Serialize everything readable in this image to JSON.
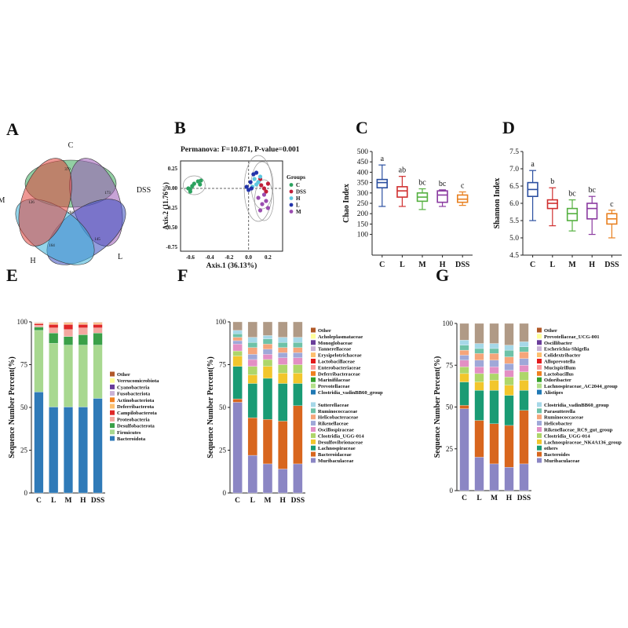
{
  "panels": {
    "A": {
      "label": "A"
    },
    "B": {
      "label": "B"
    },
    "C": {
      "label": "C"
    },
    "D": {
      "label": "D"
    },
    "E": {
      "label": "E"
    },
    "F": {
      "label": "F"
    },
    "G": {
      "label": "G"
    }
  },
  "chart_data": [
    {
      "id": "A",
      "type": "venn",
      "sets": [
        {
          "name": "C",
          "color": "#3aa85a"
        },
        {
          "name": "DSS",
          "color": "#9b59b6"
        },
        {
          "name": "L",
          "color": "#3b4cc0"
        },
        {
          "name": "H",
          "color": "#3ab0d8"
        },
        {
          "name": "M",
          "color": "#e0443c"
        }
      ],
      "region_counts": [
        {
          "region": "C only",
          "value": "379"
        },
        {
          "region": "DSS only",
          "value": "173"
        },
        {
          "region": "L only",
          "value": "145"
        },
        {
          "region": "H only",
          "value": "164"
        },
        {
          "region": "M only",
          "value": "126"
        },
        {
          "region": "all",
          "value": "284"
        }
      ]
    },
    {
      "id": "B",
      "type": "scatter",
      "title": "Permanova: F=10.871, P-value=0.001",
      "xlabel": "Axis.1 (36.13%)",
      "ylabel": "Axis.2 (11.76%)",
      "xlim": [
        -0.7,
        0.35
      ],
      "ylim": [
        -0.8,
        0.35
      ],
      "xticks": [
        "-0.6",
        "-0.4",
        "-0.2",
        "0.0",
        "0.2"
      ],
      "yticks": [
        "0.25",
        "0.00",
        "-0.25",
        "-0.50",
        "-0.75"
      ],
      "legend_title": "Groups",
      "series": [
        {
          "name": "C",
          "color": "#2ca25f",
          "x": [
            -0.62,
            -0.6,
            -0.58,
            -0.56,
            -0.52,
            -0.5,
            -0.49,
            -0.6
          ],
          "y": [
            0.0,
            -0.04,
            0.03,
            0.06,
            0.09,
            0.05,
            0.1,
            -0.01
          ]
        },
        {
          "name": "DSS",
          "color": "#c0203a",
          "x": [
            0.1,
            0.13,
            0.16,
            0.12,
            0.2,
            0.18
          ],
          "y": [
            0.08,
            0.04,
            0.0,
            0.12,
            0.06,
            -0.04
          ]
        },
        {
          "name": "H",
          "color": "#5ec8e0",
          "x": [
            0.06,
            0.08,
            0.1,
            0.04,
            0.12
          ],
          "y": [
            0.12,
            0.05,
            0.08,
            0.02,
            0.15
          ]
        },
        {
          "name": "L",
          "color": "#2233aa",
          "x": [
            0.0,
            0.02,
            -0.02,
            0.05,
            0.08,
            0.03
          ],
          "y": [
            -0.02,
            0.08,
            0.02,
            0.18,
            0.2,
            0.0
          ]
        },
        {
          "name": "M",
          "color": "#9a4db0",
          "x": [
            0.1,
            0.14,
            0.18,
            0.2,
            0.12,
            0.16
          ],
          "y": [
            -0.12,
            -0.2,
            -0.16,
            -0.25,
            -0.28,
            -0.08
          ]
        }
      ]
    },
    {
      "id": "C",
      "type": "boxplot",
      "ylabel": "Chao Index",
      "ylim": [
        0,
        500
      ],
      "yticks": [
        "500",
        "450",
        "400",
        "350",
        "300",
        "250",
        "200",
        "150",
        "100"
      ],
      "categories": [
        "C",
        "L",
        "M",
        "H",
        "DSS"
      ],
      "letters": [
        "a",
        "ab",
        "bc",
        "bc",
        "c"
      ],
      "colors": [
        "#2b4fa0",
        "#d03030",
        "#55b040",
        "#8a3aa0",
        "#e88020"
      ],
      "boxes": [
        {
          "min": 235,
          "q1": 325,
          "median": 350,
          "q3": 365,
          "max": 435
        },
        {
          "min": 235,
          "q1": 280,
          "median": 310,
          "q3": 330,
          "max": 380
        },
        {
          "min": 220,
          "q1": 260,
          "median": 280,
          "q3": 300,
          "max": 320
        },
        {
          "min": 235,
          "q1": 255,
          "median": 290,
          "q3": 310,
          "max": 315
        },
        {
          "min": 240,
          "q1": 255,
          "median": 270,
          "q3": 290,
          "max": 305
        }
      ]
    },
    {
      "id": "D",
      "type": "boxplot",
      "ylabel": "Shannon Index",
      "ylim": [
        4.5,
        7.5
      ],
      "yticks": [
        "7.5",
        "7.0",
        "6.5",
        "6.0",
        "5.5",
        "5.0",
        "4.5"
      ],
      "categories": [
        "C",
        "L",
        "M",
        "H",
        "DSS"
      ],
      "letters": [
        "a",
        "b",
        "bc",
        "bc",
        "c"
      ],
      "colors": [
        "#2b4fa0",
        "#d03030",
        "#55b040",
        "#8a3aa0",
        "#e88020"
      ],
      "boxes": [
        {
          "min": 5.5,
          "q1": 6.2,
          "median": 6.4,
          "q3": 6.6,
          "max": 6.95
        },
        {
          "min": 5.35,
          "q1": 5.85,
          "median": 6.0,
          "q3": 6.1,
          "max": 6.45
        },
        {
          "min": 5.2,
          "q1": 5.5,
          "median": 5.7,
          "q3": 5.85,
          "max": 6.1
        },
        {
          "min": 5.1,
          "q1": 5.55,
          "median": 5.85,
          "q3": 6.0,
          "max": 6.2
        },
        {
          "min": 5.0,
          "q1": 5.4,
          "median": 5.55,
          "q3": 5.7,
          "max": 5.8
        }
      ]
    },
    {
      "id": "E",
      "type": "stacked_bar",
      "ylabel": "Sequence Number Percent(%)",
      "ylim": [
        0,
        100
      ],
      "yticks": [
        "100",
        "75",
        "50",
        "25",
        "0"
      ],
      "categories": [
        "C",
        "L",
        "M",
        "H",
        "DSS"
      ],
      "legend": [
        "Other",
        "Verrucomicrobiota",
        "Cyanobacteria",
        "Fusobacteriota",
        "Actinobacteriota",
        "Deferribacterota",
        "Campilobacterota",
        "Proteobacteria",
        "Desulfobacterota",
        "Firmicutes",
        "Bacteroidota"
      ],
      "series": [
        {
          "name": "Bacteroidota",
          "color": "#2f7ab8",
          "values": [
            59,
            50,
            50,
            50,
            55
          ]
        },
        {
          "name": "Firmicutes",
          "color": "#a8d890",
          "values": [
            36,
            37,
            36,
            36,
            31
          ]
        },
        {
          "name": "Desulfobacterota",
          "color": "#3aa048",
          "values": [
            2,
            6,
            5,
            6,
            7
          ]
        },
        {
          "name": "Proteobacteria",
          "color": "#f4a8a0",
          "values": [
            1,
            3,
            4,
            4,
            3
          ]
        },
        {
          "name": "Campilobacterota",
          "color": "#e02828",
          "values": [
            1,
            2,
            3,
            2,
            2
          ]
        },
        {
          "name": "Deferribacterota",
          "color": "#fdbf6f",
          "values": [
            0.3,
            0.5,
            0.5,
            0.5,
            0.5
          ]
        },
        {
          "name": "Actinobacteriota",
          "color": "#f08020",
          "values": [
            0.2,
            0.5,
            0.5,
            0.5,
            0.5
          ]
        },
        {
          "name": "Fusobacteriota",
          "color": "#cab2d6",
          "values": [
            0.2,
            0.2,
            0.2,
            0.2,
            0.2
          ]
        },
        {
          "name": "Cyanobacteria",
          "color": "#6a3d9a",
          "values": [
            0.1,
            0.1,
            0.1,
            0.1,
            0.1
          ]
        },
        {
          "name": "Verrucomicrobiota",
          "color": "#ffff99",
          "values": [
            0.1,
            0.1,
            0.1,
            0.1,
            0.1
          ]
        },
        {
          "name": "Other",
          "color": "#b15928",
          "values": [
            0.1,
            0.1,
            0.1,
            0.1,
            0.1
          ]
        }
      ]
    },
    {
      "id": "F",
      "type": "stacked_bar",
      "ylabel": "Sequence Number Percent(%)",
      "ylim": [
        0,
        100
      ],
      "yticks": [
        "100",
        "75",
        "50",
        "25",
        "0"
      ],
      "categories": [
        "C",
        "L",
        "M",
        "H",
        "DSS"
      ],
      "legend": [
        "Other",
        "Acholeplasmataceae",
        "Monoglobaceae",
        "Tannerellaceae",
        "Erysipelotrichaceae",
        "Lactobacillaceae",
        "Enterobacteriaceae",
        "Deferribacteraceae",
        "Marinifilaceae",
        "Prevotellaceae",
        "Clostridia_vadinBB60_group",
        "Sutterellaceae",
        "Ruminococcaceae",
        "Helicobacteraceae",
        "Rikenellaceae",
        "Oscillospiraceae",
        "Clostridia_UGG-014",
        "Desulfovibrionaceae",
        "Lachnospiraceae",
        "Bacteroidaceae",
        "Muribaculaceae"
      ],
      "series": [
        {
          "name": "Muribaculaceae",
          "color": "#8b86c4",
          "values": [
            53,
            22,
            17,
            14,
            17
          ]
        },
        {
          "name": "Bacteroidaceae",
          "color": "#d8661e",
          "values": [
            2,
            22,
            26,
            28,
            34
          ]
        },
        {
          "name": "Lachnospiraceae",
          "color": "#1a9b74",
          "values": [
            19,
            20,
            24,
            22,
            13
          ]
        },
        {
          "name": "Desulfovibrionaceae",
          "color": "#f2c62c",
          "values": [
            6,
            5,
            7,
            6,
            6
          ]
        },
        {
          "name": "Clostridia_UGG-014",
          "color": "#aed66a",
          "values": [
            3,
            5,
            4,
            5,
            5
          ]
        },
        {
          "name": "Oscillospiraceae",
          "color": "#e38fc4",
          "values": [
            4,
            4,
            3,
            4,
            4
          ]
        },
        {
          "name": "Rikenellaceae",
          "color": "#9fa8d8",
          "values": [
            2,
            3,
            3,
            3,
            3
          ]
        },
        {
          "name": "Helicobacteraceae",
          "color": "#f5a57a",
          "values": [
            2,
            4,
            3,
            3,
            3
          ]
        },
        {
          "name": "Ruminococcaceae",
          "color": "#6ec2a8",
          "values": [
            2,
            3,
            3,
            3,
            3
          ]
        },
        {
          "name": "Sutterellaceae",
          "color": "#a6d8e8",
          "values": [
            2,
            3,
            2,
            3,
            3
          ]
        },
        {
          "name": "Other",
          "color": "#b09a86",
          "values": [
            5,
            9,
            8,
            9,
            9
          ]
        }
      ]
    },
    {
      "id": "G",
      "type": "stacked_bar",
      "ylabel": "Sequence Number Percent(%)",
      "ylim": [
        0,
        100
      ],
      "yticks": [
        "100",
        "75",
        "50",
        "25",
        "0"
      ],
      "categories": [
        "C",
        "L",
        "M",
        "H",
        "DSS"
      ],
      "legend": [
        "Other",
        "Prevotellaceae_UCG-001",
        "Oscillibacter",
        "Escherichia-Shigella",
        "Colidextribacter",
        "Alloprevotella",
        "Mucispirillum",
        "Lactobacillus",
        "Odoribacter",
        "Lachnospiraceae_AC2044_group",
        "Alistipes",
        "Clostridia_vadinBB60_group",
        "Parasutterella",
        "Ruminococcaceae",
        "Helicobacter",
        "Rikenellaceae_RC9_gut_group",
        "Clostridia_UGG-014",
        "Lachnospiraceae_NK4A136_group",
        "others",
        "Bacteroides",
        "Muribaculaceae"
      ],
      "series": [
        {
          "name": "Muribaculaceae",
          "color": "#8b86c4",
          "values": [
            49,
            20,
            16,
            14,
            16
          ]
        },
        {
          "name": "Bacteroides",
          "color": "#d8661e",
          "values": [
            2,
            22,
            24,
            25,
            32
          ]
        },
        {
          "name": "others",
          "color": "#1a9b74",
          "values": [
            14,
            18,
            20,
            18,
            12
          ]
        },
        {
          "name": "Lachnospiraceae_NK4A136_group",
          "color": "#f2c62c",
          "values": [
            5,
            5,
            6,
            6,
            6
          ]
        },
        {
          "name": "Clostridia_UGG-014",
          "color": "#aed66a",
          "values": [
            4,
            5,
            4,
            5,
            5
          ]
        },
        {
          "name": "Rikenellaceae_RC9_gut_group",
          "color": "#e38fc4",
          "values": [
            4,
            4,
            4,
            4,
            4
          ]
        },
        {
          "name": "Helicobacter",
          "color": "#9fa8d8",
          "values": [
            3,
            4,
            4,
            4,
            4
          ]
        },
        {
          "name": "Ruminococcaceae",
          "color": "#f5a57a",
          "values": [
            3,
            4,
            4,
            4,
            4
          ]
        },
        {
          "name": "Parasutterella",
          "color": "#6ec2a8",
          "values": [
            3,
            3,
            3,
            4,
            3
          ]
        },
        {
          "name": "Clostridia_vadinBB60_group",
          "color": "#a6d8e8",
          "values": [
            3,
            3,
            3,
            3,
            3
          ]
        },
        {
          "name": "Other",
          "color": "#b09a86",
          "values": [
            10,
            12,
            12,
            13,
            11
          ]
        }
      ]
    }
  ]
}
